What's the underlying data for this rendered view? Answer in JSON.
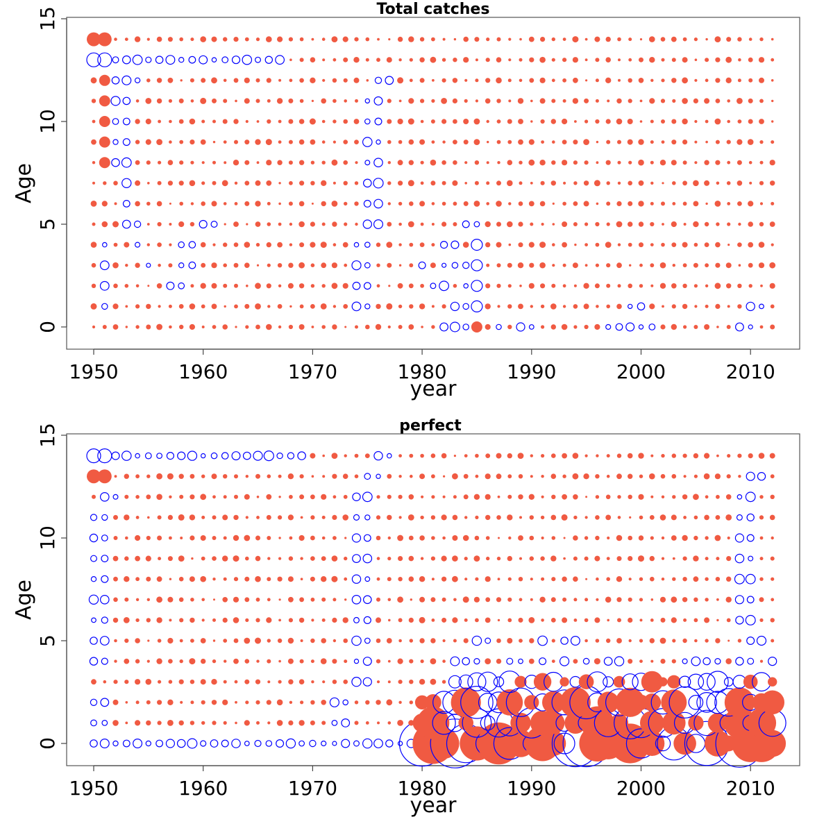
{
  "chart_data": [
    {
      "type": "scatter",
      "subtype": "residual-bubble",
      "title": "Total catches",
      "xlabel": "year",
      "ylabel": "Age",
      "xlim": [
        1948,
        2014
      ],
      "ylim": [
        -1,
        15
      ],
      "xticks": [
        1950,
        1960,
        1970,
        1980,
        1990,
        2000,
        2010
      ],
      "yticks": [
        0,
        5,
        10,
        15
      ],
      "grid": false,
      "legend": "none",
      "years": [
        1950,
        2012
      ],
      "ages": [
        0,
        14
      ],
      "colors": {
        "positive": "#f05a42",
        "negative": "#0000ff"
      },
      "residual_rows": {
        "14": "++p+++++++++++++++ppppppppppppppppppppppppppppppppppppppppppppppp",
        "13": "nnnnnnnnnnnnnnnnnnp+++p+++p++p+p+p+p+p+p+p+p+p+++p+p+p+p+p+p+p",
        "12": "++nnnpppp+p+p+p+p+pp+p+p+pnn+p+p+p+p+p+p+p+p+pp+p+p+p+p+p+p+p+p",
        "11": "++nnpp+p+p+p+p+p+p++p+p+pnn+p+p+p+p+p+p+p+p+p+p+p+p+p+p+p+p+p+p+",
        "10": "++nnpp+p+p+p+p+p+p++p+p+pnn+p+p+p+p+p+p+p+p+p+p+p+p+p+p+p+p+p+p+",
        "9": "++nnpp+p+p+p+p+p+p++p+p+pnn+p+p+p+p+p+p+p+p+p+p+p+p+p+p+p+p+p+p+",
        "8": "++nnpp+p+p+p+p+p+p++p+p+pnn+p+p+p+p+p+p+p+p+p+p+p+p+p+p+p+p+p+p+",
        "7": "++pnpp+p+p+p+p+p+p++p+p+pnn+p+p+p+p+p+p+p+p+p+p+p+p+p+p+p+p+p+p+",
        "6": "++pnpp+p+p+p+p+p+p++p+p+pnn+p+p+p+p+p+p+p+p+p+p+p+p+p+p+p+p+p+p+",
        "5": "+p+nnp+p+pnnp+p+p+p++p+p+nn+p+p+p+nnp+p+p+p+p+p+p+p+p+p+p+p+p+p",
        "4": "+n+pnp++nn+p+p+p+p++p+p+nn++p+p+nn+n++p+p+p+p+p+p+p+p+p+p+p+p+p",
        "3": "+n+p+n++nn+p+p+p+p++p+p+nn++p+n+nnnn+p+p+p+p+p+p+p+p+p+p+p+p+p+",
        "2": "+n+p+p+nn+p+p+p+p+++p+p+nn+p+p+nn+nn+p+p+p+p+p+p+p+p+p+p+p+p+p+",
        "1": "+n+p+p+pp+p+p+p+p+p+p+p+nn+p+p+p+nnn+p+p+p+p+p+p+nn+p+p+p+p+nn+",
        "0": "ppppppppppppppppppppppppppppppppnnn+pn+nnp+p+p+nnnnn+p+p+p+nnp++"
      }
    },
    {
      "type": "scatter",
      "subtype": "residual-bubble",
      "title": "perfect",
      "xlabel": "year",
      "ylabel": "Age",
      "xlim": [
        1948,
        2014
      ],
      "ylim": [
        -1,
        15
      ],
      "xticks": [
        1950,
        1960,
        1970,
        1980,
        1990,
        2000,
        2010
      ],
      "yticks": [
        0,
        5,
        10,
        15
      ],
      "grid": false,
      "legend": "none",
      "years": [
        1950,
        2012
      ],
      "ages": [
        0,
        14
      ],
      "colors": {
        "positive": "#f05a42",
        "negative": "#0000ff"
      },
      "residual_rows": {
        "14": "nnnnnnnnnnnnnnnnnnnn+p+p+pnn+p+p+p+p+p+p+p+p+p+p+p+p+p+p+p+p+p+p+",
        "13": "++p+++++++++++++++p+p+p+pnn+p+p+p+p+p+p+p+p+p+p+p+p+p+p+p+p+nn+p",
        "12": "pnn++p+p+p+p+p+p+p+p+p+pnn+p+p+p+p+p+p+p+p+p+p+p+p+p+p+p+p+nn+p",
        "11": "nn+++p+p+p+p+p+p+p+p+p+pnn+p+p+p+p+p+p+p+p+p+p+p+p+p+p+p+p+nn+p",
        "10": "nn+++p+p+p+p+p+p+p+p+p+pnn+p+p+p+p+p+p+p+p+p+p+p+p+p+p+p+p+nn+p",
        "9": "nn+++p+p+p+p+p+p+p+p+p+pnn+p+p+p+p+p+p+p+p+p+p+p+p+p+p+p+p+nn+p",
        "8": "nn+++p+p+p+p+p+p+p+p+p+pnn+p+p+p+p+p+p+p+p+p+p+p+p+p+p+p+p+nn+p",
        "7": "nn+++p+p+p+p+p+p+p+p+p+pnn+p+p+p+p+p+p+p+p+p+p+p+p+p+p+p+p+nn+p",
        "6": "nn+++p+p+p+p+p+p+p+p+p+pnn+p+p+p+p+p+p+p+p+p+p+p+p+p+p+p+p+nn+p",
        "5": "nn+++p+p+p+p+p+p+p+p+p+pnn+p+p+p+p+nn++++n+nn+p+p+p+p+p+p+p+nn+p",
        "4": "nn+++p+p+p+p+p+p+p+p+p+pnn+p+p+p+nnn++nn+n+n+n+nn+p+p+nnnn+nn+n",
        "3": "+++p+++++++p+p+p+p+p+p+pnn+p+p+p+nnnnnn+n+n+n+nn+nn+++nnnnnn+n+",
        "2": "nn+p+p+p+p+p+p+p+p+p+pnn+p+p+p+pnn+nnn+n+n+n+nn+n+++n+nnnnn+n+",
        "1": "nn+p+p+p+p+p+p+p+p+p+pnn+p+p+p+pnn+nnnn+n++n+n+n+nn+n+n+n+n+n+n",
        "0": "nnnnnnnnnnnnnnnnnnnnnnnnnnnnnnn++nn+n+n+n++nnn++++n+nn+nn++n+++"
      }
    }
  ]
}
